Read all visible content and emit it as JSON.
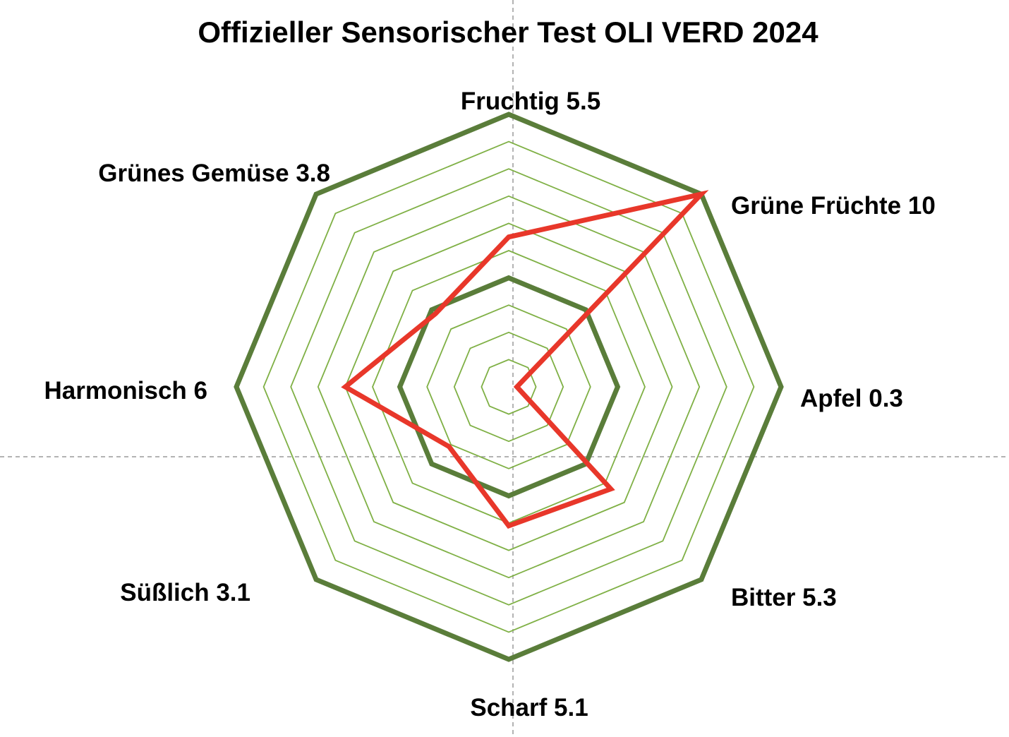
{
  "chart_data": {
    "type": "radar",
    "title": "Offizieller Sensorischer Test OLI VERD 2024",
    "range": [
      0,
      10
    ],
    "rings": 10,
    "bold_rings": [
      4,
      10
    ],
    "grid": true,
    "categories": [
      "Fruchtig",
      "Grüne Früchte",
      "Apfel",
      "Bitter",
      "Scharf",
      "Süßlich",
      "Harmonisch",
      "Grünes Gemüse"
    ],
    "values": [
      5.5,
      10,
      0.3,
      5.3,
      5.1,
      3.1,
      6,
      3.8
    ],
    "labels": [
      "Fruchtig 5.5",
      "Grüne Früchte 10",
      "Apfel 0.3",
      "Bitter 5.3",
      "Scharf 5.1",
      "Süßlich 3.1",
      "Harmonisch 6",
      "Grünes Gemüse 3.8"
    ],
    "colors": {
      "series": "#e8372a",
      "bold_grid": "#5a7d3a",
      "thin_grid": "#7fb045",
      "crosshair": "#9a9a9a"
    }
  }
}
